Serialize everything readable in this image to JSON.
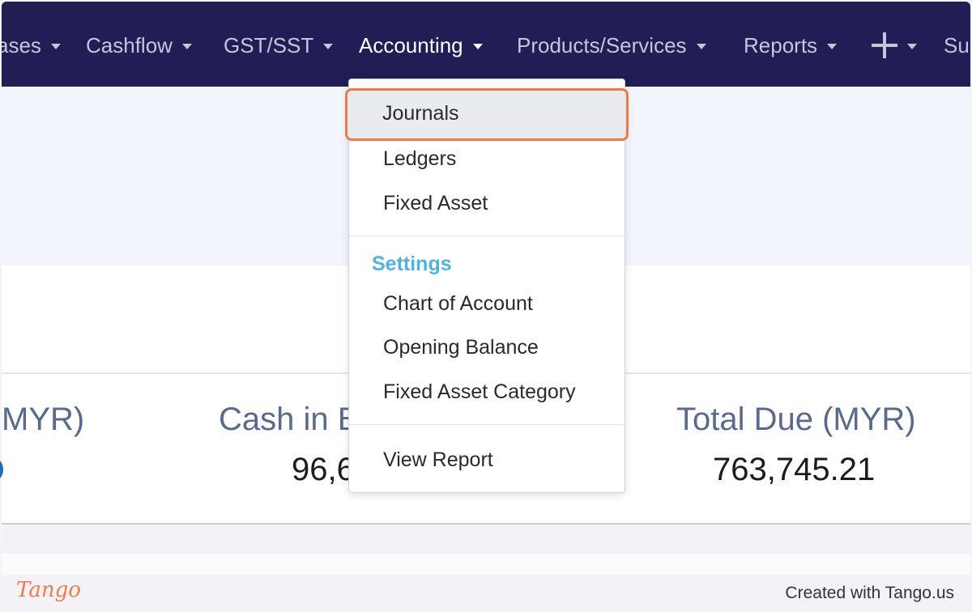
{
  "nav": {
    "items": [
      {
        "label": "ases",
        "active": false,
        "caret": true
      },
      {
        "label": "Cashflow",
        "active": false,
        "caret": true
      },
      {
        "label": "GST/SST",
        "active": false,
        "caret": true
      },
      {
        "label": "Accounting",
        "active": true,
        "caret": true
      },
      {
        "label": "Products/Services",
        "active": false,
        "caret": true
      },
      {
        "label": "Reports",
        "active": false,
        "caret": true
      },
      {
        "label": "Su",
        "active": false,
        "caret": false
      }
    ],
    "add_icon": "plus-icon",
    "colors": {
      "background": "#211e55",
      "text": "#c6c5db",
      "active_text": "#ffffff"
    }
  },
  "dropdown": {
    "items": [
      "Journals",
      "Ledgers",
      "Fixed Asset"
    ],
    "settings_heading": "Settings",
    "settings_items": [
      "Chart of Account",
      "Opening Balance",
      "Fixed Asset Category"
    ],
    "report_item": "View Report",
    "highlighted": "Journals",
    "colors": {
      "highlight_border": "#ee7c4a",
      "heading": "#4fb3e0"
    }
  },
  "stats": [
    {
      "label": "MYR)",
      "value": ""
    },
    {
      "label": "Cash in B",
      "value": "96,6"
    },
    {
      "label": "Total Due (MYR)",
      "value": "763,745.21"
    }
  ],
  "footer": {
    "logo": "Tango",
    "created": "Created with Tango.us"
  }
}
